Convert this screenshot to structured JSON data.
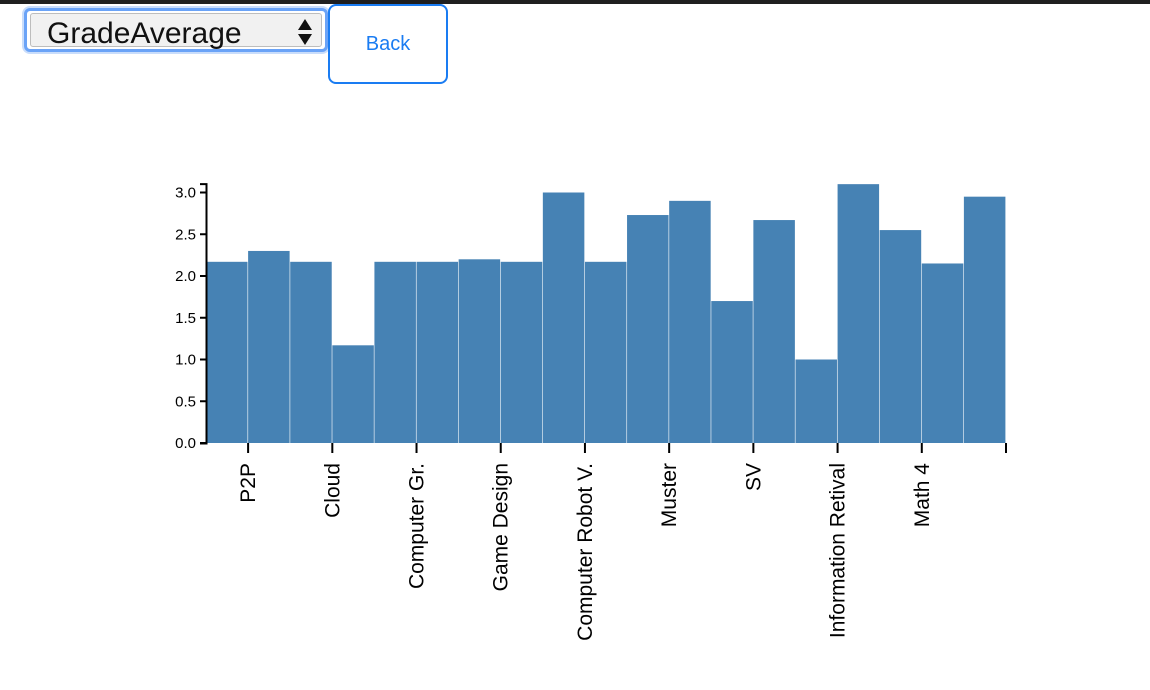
{
  "controls": {
    "select_value": "GradeAverage",
    "back_label": "Back"
  },
  "colors": {
    "bar": "#4682b4",
    "accent": "#1a7cf2",
    "focus_ring": "#6aa3f7"
  },
  "chart_data": {
    "type": "bar",
    "title": "",
    "xlabel": "",
    "ylabel": "",
    "ylim": [
      0,
      3.1
    ],
    "y_ticks": [
      "0.0",
      "0.5",
      "1.0",
      "1.5",
      "2.0",
      "2.5",
      "3.0"
    ],
    "x_tick_labels": [
      "P2P",
      "Cloud",
      "Computer Gr.",
      "Game Design",
      "Computer Robot V.",
      "Muster",
      "SV",
      "Information Retival",
      "Math 4",
      ""
    ],
    "values": [
      2.17,
      2.3,
      2.17,
      1.17,
      2.17,
      2.17,
      2.2,
      2.17,
      3.0,
      2.17,
      2.73,
      2.9,
      1.7,
      2.67,
      1.0,
      3.1,
      2.55,
      2.15,
      2.95
    ]
  }
}
